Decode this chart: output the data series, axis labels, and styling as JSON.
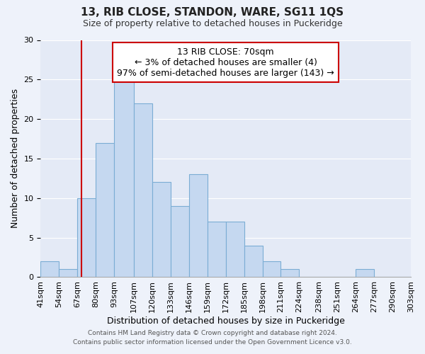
{
  "title": "13, RIB CLOSE, STANDON, WARE, SG11 1QS",
  "subtitle": "Size of property relative to detached houses in Puckeridge",
  "xlabel": "Distribution of detached houses by size in Puckeridge",
  "ylabel": "Number of detached properties",
  "footer_lines": [
    "Contains HM Land Registry data © Crown copyright and database right 2024.",
    "Contains public sector information licensed under the Open Government Licence v3.0."
  ],
  "bin_edges": [
    41,
    54,
    67,
    80,
    93,
    107,
    120,
    133,
    146,
    159,
    172,
    185,
    198,
    211,
    224,
    238,
    251,
    264,
    277,
    290,
    303
  ],
  "bin_labels": [
    "41sqm",
    "54sqm",
    "67sqm",
    "80sqm",
    "93sqm",
    "107sqm",
    "120sqm",
    "133sqm",
    "146sqm",
    "159sqm",
    "172sqm",
    "185sqm",
    "198sqm",
    "211sqm",
    "224sqm",
    "238sqm",
    "251sqm",
    "264sqm",
    "277sqm",
    "290sqm",
    "303sqm"
  ],
  "counts": [
    2,
    1,
    10,
    17,
    25,
    22,
    12,
    9,
    13,
    7,
    7,
    4,
    2,
    1,
    0,
    0,
    0,
    1,
    0,
    0
  ],
  "bar_color": "#c5d8f0",
  "bar_edge_color": "#7badd4",
  "vline_x": 70,
  "vline_color": "#cc0000",
  "annotation_line1": "13 RIB CLOSE: 70sqm",
  "annotation_line2": "← 3% of detached houses are smaller (4)",
  "annotation_line3": "97% of semi-detached houses are larger (143) →",
  "annotation_box_color": "#ffffff",
  "annotation_box_edge_color": "#cc0000",
  "ylim": [
    0,
    30
  ],
  "yticks": [
    0,
    5,
    10,
    15,
    20,
    25,
    30
  ],
  "background_color": "#eef2fa",
  "plot_bg_color": "#e4eaf6",
  "grid_color": "#ffffff",
  "title_fontsize": 11,
  "subtitle_fontsize": 9,
  "annotation_fontsize": 9,
  "ylabel_fontsize": 9,
  "xlabel_fontsize": 9,
  "tick_fontsize": 8,
  "footer_fontsize": 6.5
}
